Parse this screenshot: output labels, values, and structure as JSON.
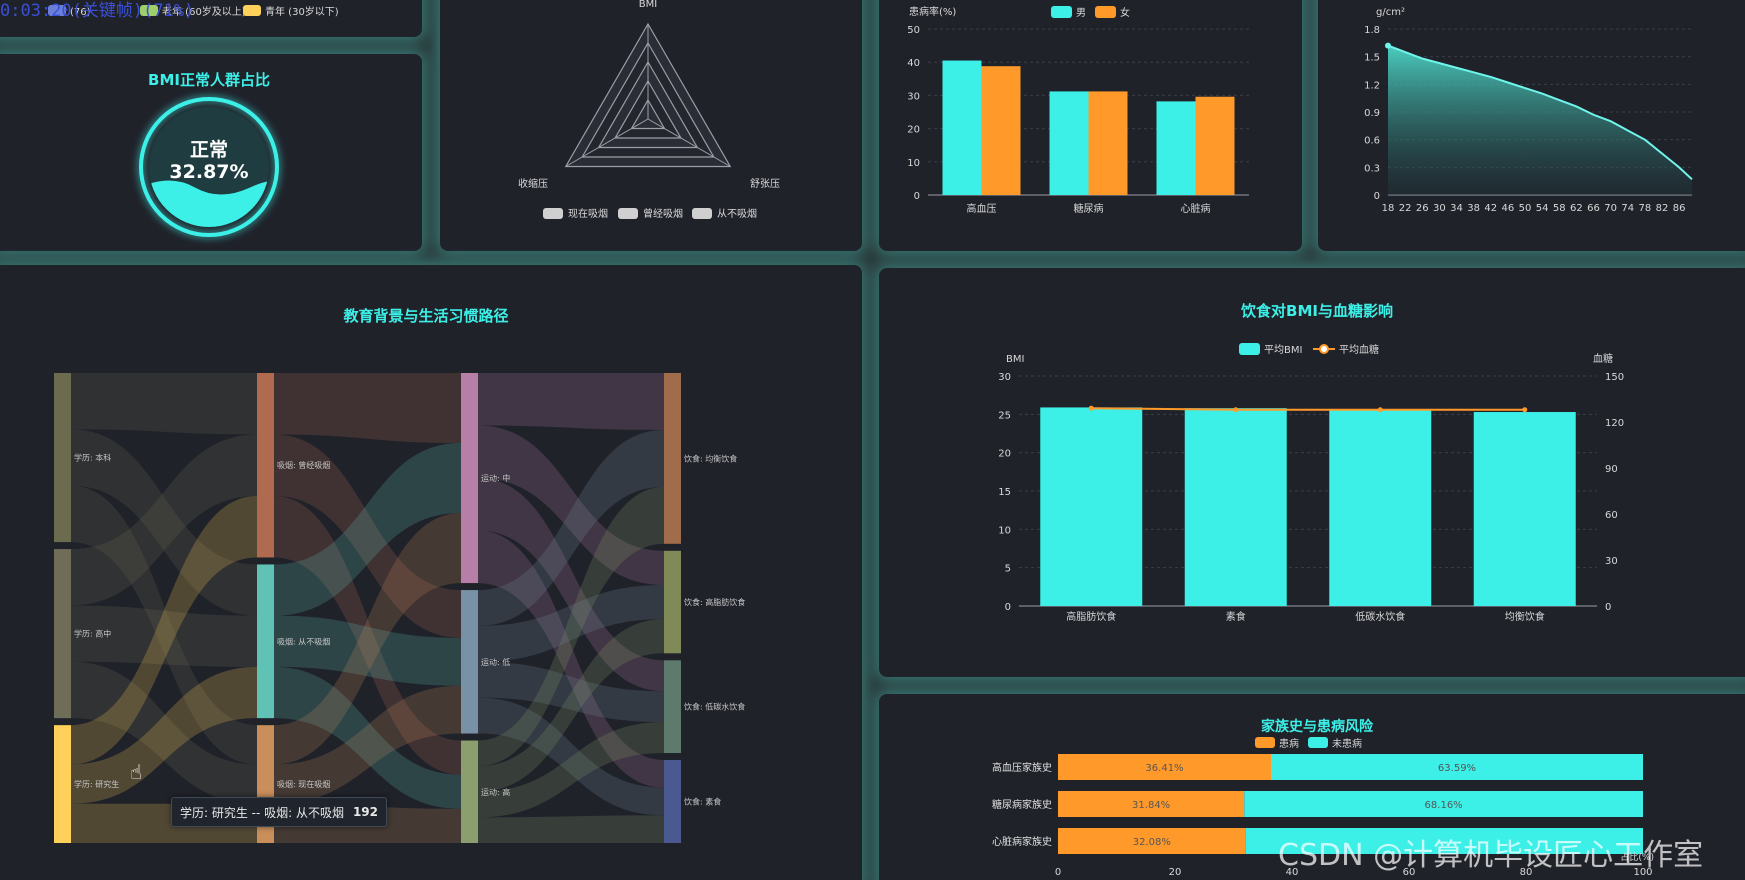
{
  "recording": {
    "timer": "0:03:20(关键帧)(71%)"
  },
  "watermark": "CSDN @计算机毕设匠心工作室",
  "age_legend": {
    "items": [
      "(76)",
      "老年 (60岁及以上)",
      "青年 (30岁以下)"
    ],
    "colors": [
      "#6b7fd8",
      "#9fcf6a",
      "#ffd05a"
    ]
  },
  "bmi_gauge": {
    "title": "BMI正常人群占比",
    "label": "正常",
    "value": "32.87%",
    "fraction": 0.3287
  },
  "radar": {
    "indicators": [
      "BMI",
      "舒张压",
      "收缩压"
    ],
    "legend": [
      "现在吸烟",
      "曾经吸烟",
      "从不吸烟"
    ]
  },
  "disease_gender": {
    "ylabel": "患病率(%)",
    "legend": [
      "男",
      "女"
    ],
    "colors": [
      "#3cf0e8",
      "#ff9a2a"
    ],
    "chart_data": {
      "type": "bar",
      "categories": [
        "高血压",
        "糖尿病",
        "心脏病"
      ],
      "series": [
        {
          "name": "男",
          "values": [
            40.5,
            31.2,
            28.2
          ]
        },
        {
          "name": "女",
          "values": [
            38.8,
            31.2,
            29.6
          ]
        }
      ],
      "ylim": [
        0,
        50
      ],
      "yticks": [
        "0",
        "10",
        "20",
        "30",
        "40",
        "50"
      ]
    }
  },
  "bone_density": {
    "ylabel": "g/cm²",
    "chart_data": {
      "type": "area",
      "x": [
        18,
        22,
        26,
        30,
        34,
        38,
        42,
        46,
        50,
        54,
        58,
        62,
        66,
        70,
        74,
        78,
        82,
        86,
        89
      ],
      "values": [
        1.62,
        1.55,
        1.48,
        1.43,
        1.38,
        1.33,
        1.28,
        1.22,
        1.16,
        1.1,
        1.03,
        0.96,
        0.87,
        0.8,
        0.7,
        0.6,
        0.45,
        0.3,
        0.17
      ],
      "ylim": [
        0,
        1.8
      ],
      "yticks": [
        "0",
        "0.3",
        "0.6",
        "0.9",
        "1.2",
        "1.5",
        "1.8"
      ],
      "xticks": [
        "18",
        "22",
        "26",
        "30",
        "34",
        "38",
        "42",
        "46",
        "50",
        "54",
        "58",
        "62",
        "66",
        "70",
        "74",
        "78",
        "82",
        "86"
      ]
    }
  },
  "sankey": {
    "title": "教育背景与生活习惯路径",
    "columns": [
      {
        "nodes": [
          {
            "label": "学历: 本科",
            "weight": 33,
            "color": "#6b6b50"
          },
          {
            "label": "学历: 高中",
            "weight": 33,
            "color": "#6f6c58"
          },
          {
            "label": "学历: 研究生",
            "weight": 23,
            "color": "#ffd05a"
          }
        ]
      },
      {
        "nodes": [
          {
            "label": "吸烟: 曾经吸烟",
            "weight": 36,
            "color": "#b06a50"
          },
          {
            "label": "吸烟: 从不吸烟",
            "weight": 30,
            "color": "#5fc2b4"
          },
          {
            "label": "吸烟: 现在吸烟",
            "weight": 23,
            "color": "#c98e5a"
          }
        ]
      },
      {
        "nodes": [
          {
            "label": "运动: 中",
            "weight": 41,
            "color": "#b77fa8"
          },
          {
            "label": "运动: 低",
            "weight": 28,
            "color": "#7891a6"
          },
          {
            "label": "运动: 高",
            "weight": 20,
            "color": "#8a9e6e"
          }
        ]
      },
      {
        "nodes": [
          {
            "label": "饮食: 均衡饮食",
            "weight": 35,
            "color": "#a06c4c"
          },
          {
            "label": "饮食: 高脂肪饮食",
            "weight": 21,
            "color": "#7f8a58"
          },
          {
            "label": "饮食: 低碳水饮食",
            "weight": 19,
            "color": "#5e7a6c"
          },
          {
            "label": "饮食: 素食",
            "weight": 17,
            "color": "#4a5a90"
          }
        ]
      }
    ],
    "tooltip": {
      "label": "学历: 研究生 -- 吸烟: 从不吸烟",
      "value": "192"
    }
  },
  "diet_bmi": {
    "title": "饮食对BMI与血糖影响",
    "legend": [
      "平均BMI",
      "平均血糖"
    ],
    "ylabel_left": "BMI",
    "ylabel_right": "血糖",
    "chart_data": {
      "type": "bar",
      "categories": [
        "高脂肪饮食",
        "素食",
        "低碳水饮食",
        "均衡饮食"
      ],
      "series": [
        {
          "name": "平均BMI",
          "values": [
            25.9,
            25.8,
            25.5,
            25.3
          ]
        },
        {
          "name": "平均血糖",
          "values": [
            129,
            128,
            128,
            128
          ]
        }
      ],
      "ylim": [
        0,
        30
      ],
      "y2lim": [
        0,
        150
      ],
      "yticks": [
        "0",
        "5",
        "10",
        "15",
        "20",
        "25",
        "30"
      ],
      "y2ticks": [
        "0",
        "30",
        "60",
        "90",
        "120",
        "150"
      ]
    }
  },
  "family_history": {
    "title": "家族史与患病风险",
    "legend": [
      "患病",
      "未患病"
    ],
    "xlabel": "占比(%)",
    "chart_data": {
      "type": "bar",
      "categories": [
        "高血压家族史",
        "糖尿病家族史",
        "心脏病家族史"
      ],
      "series": [
        {
          "name": "患病",
          "values": [
            36.41,
            31.84,
            32.08
          ]
        },
        {
          "name": "未患病",
          "values": [
            63.59,
            68.16,
            67.92
          ]
        }
      ],
      "labels": [
        [
          "36.41%",
          "31.84%",
          "32.08%"
        ],
        [
          "63.59%",
          "68.16%",
          ""
        ]
      ],
      "xticks": [
        "0",
        "20",
        "40",
        "60",
        "80",
        "100"
      ],
      "xlim": [
        0,
        100
      ]
    }
  }
}
